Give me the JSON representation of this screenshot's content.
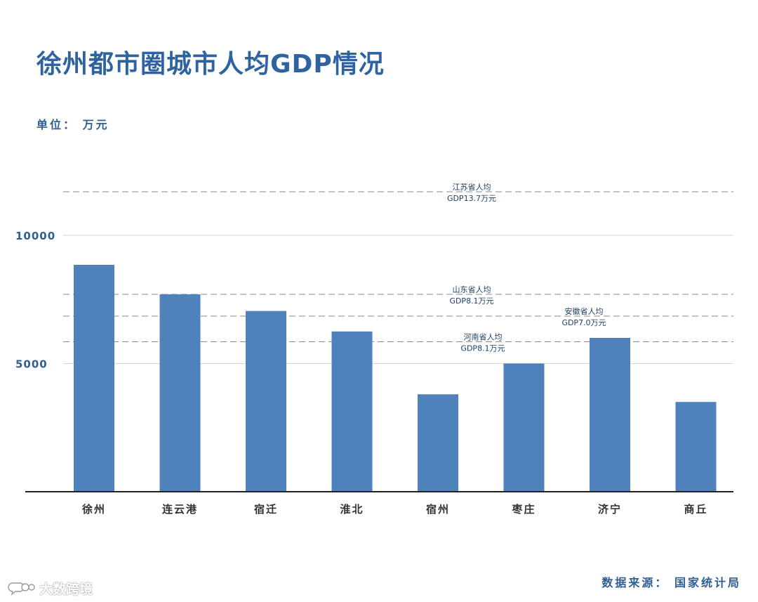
{
  "title": "徐州都市圈城市人均GDP情况",
  "unit_label": "单位： 万元",
  "source_label": "数据来源： 国家统计局",
  "watermark": {
    "text": "大数跨境",
    "icon": "speech-bubble-logo-icon"
  },
  "colors": {
    "bar": "#4f81bd",
    "title": "#2f63a0",
    "text": "#2f5f92",
    "grid": "#d4d4d4",
    "axis": "#222222"
  },
  "chart_data": {
    "type": "bar",
    "title": "徐州都市圈城市人均GDP情况",
    "xlabel": "",
    "ylabel": "单位： 万元",
    "categories": [
      "徐州",
      "连云港",
      "宿迁",
      "淮北",
      "宿州",
      "枣庄",
      "济宁",
      "商丘"
    ],
    "values": [
      8850,
      7700,
      7050,
      6250,
      3800,
      5000,
      6000,
      3500
    ],
    "ylim": [
      0,
      12000
    ],
    "yticks": [
      5000,
      10000
    ],
    "grid": true,
    "legend": "none",
    "reference_lines": [
      {
        "label_line1": "江苏省人均",
        "label_line2": "GDP13.7万元",
        "value": 11700
      },
      {
        "label_line1": "山东省人均",
        "label_line2": "GDP8.1万元",
        "value": 7700
      },
      {
        "label_line1": "安徽省人均",
        "label_line2": "GDP7.0万元",
        "value": 6850
      },
      {
        "label_line1": "河南省人均",
        "label_line2": "GDP8.1万元",
        "value": 5850
      }
    ]
  }
}
